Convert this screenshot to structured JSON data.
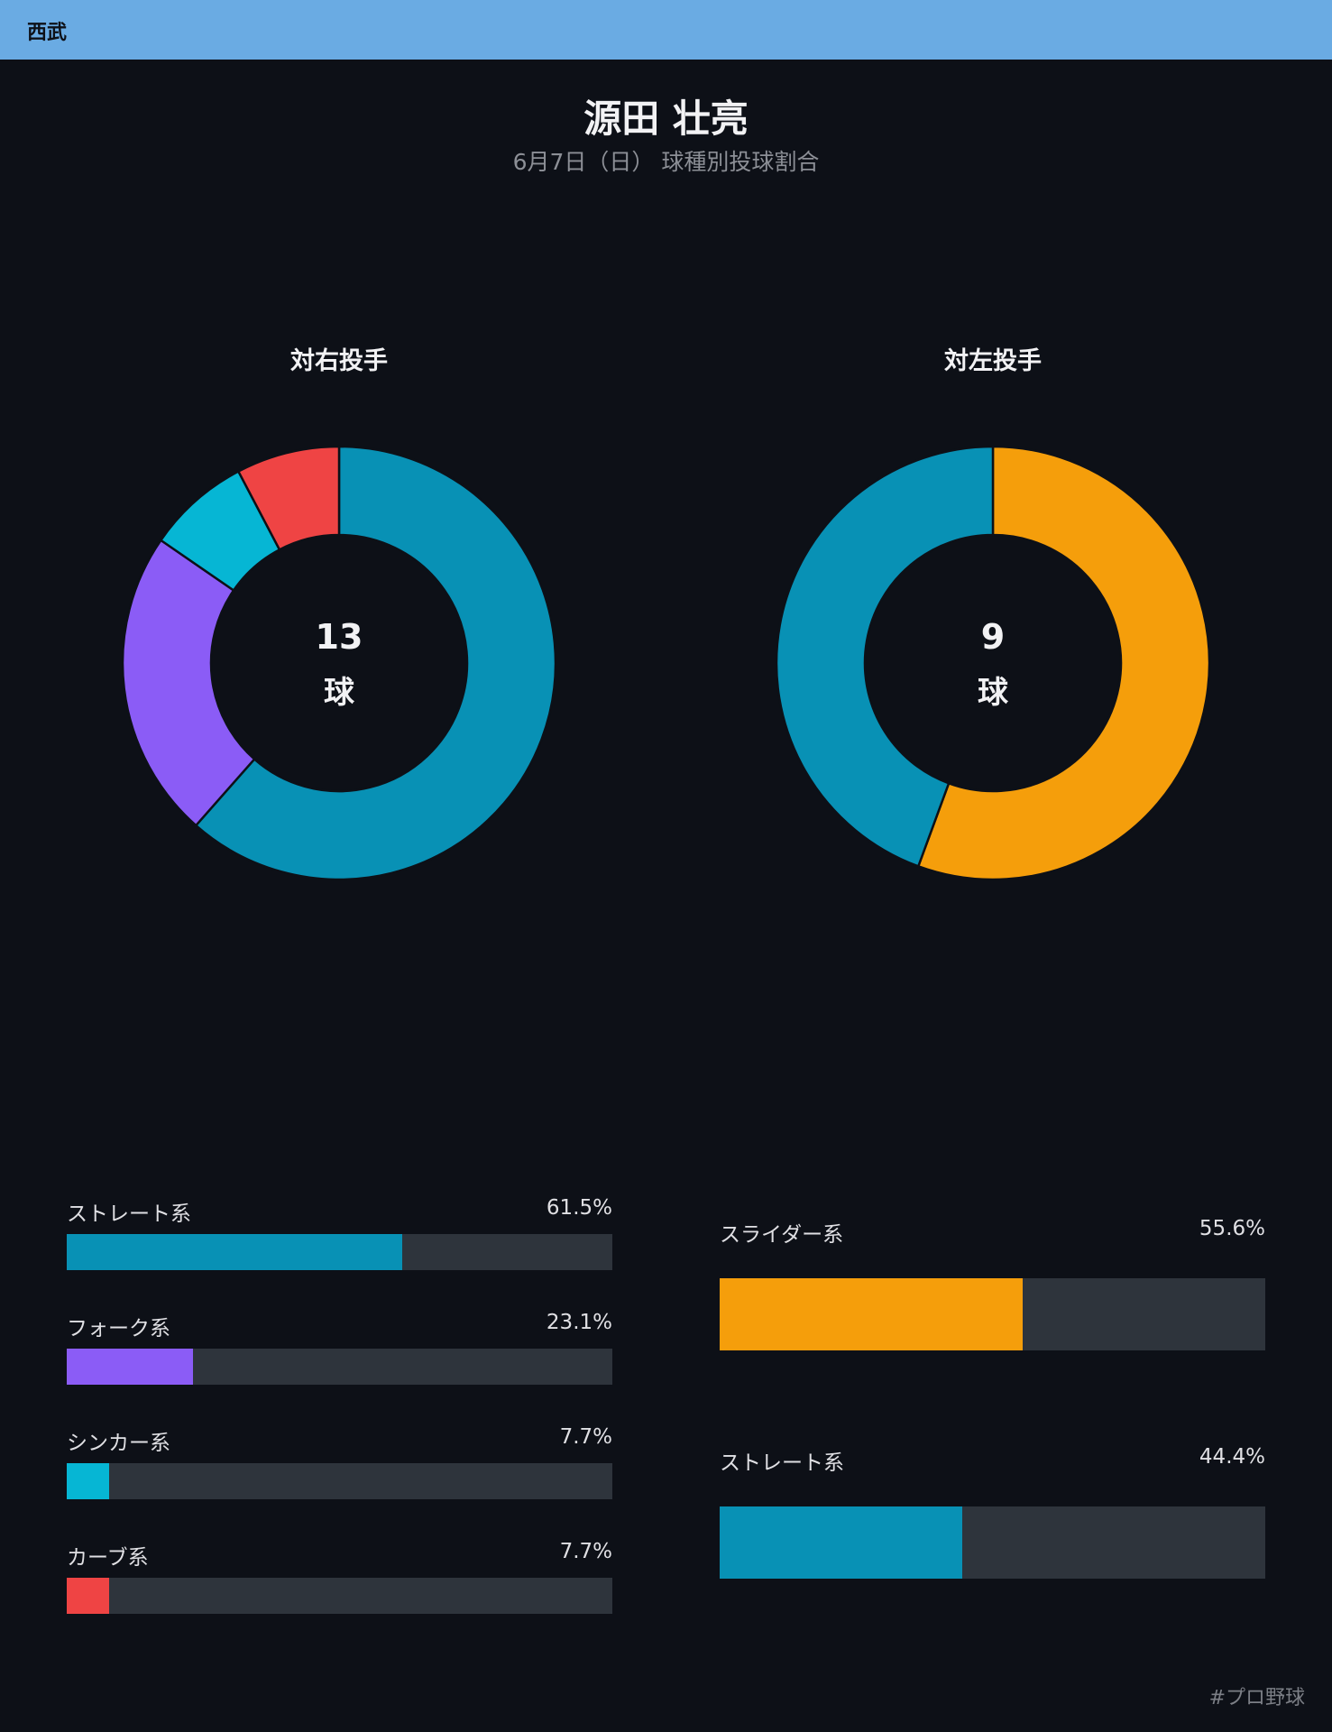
{
  "header": {
    "team": "西武"
  },
  "title": "源田 壮亮",
  "subtitle": "6月7日（日） 球種別投球割合",
  "hashtag": "#プロ野球",
  "colors": {
    "straight": "#0891b5",
    "fork": "#8b5cf6",
    "sinker": "#06b6d4",
    "curve": "#ef4444",
    "slider": "#f59e0b",
    "track": "#2e343c"
  },
  "chart_data": [
    {
      "type": "pie",
      "title": "対右投手",
      "center": {
        "value": "13",
        "unit": "球"
      },
      "slices": [
        {
          "name": "ストレート系",
          "value": 61.5,
          "label": "61.5%",
          "color": "#0891b5"
        },
        {
          "name": "フォーク系",
          "value": 23.1,
          "label": "23.1%",
          "color": "#8b5cf6"
        },
        {
          "name": "シンカー系",
          "value": 7.7,
          "label": "7.7%",
          "color": "#06b6d4"
        },
        {
          "name": "カーブ系",
          "value": 7.7,
          "label": "7.7%",
          "color": "#ef4444"
        }
      ]
    },
    {
      "type": "pie",
      "title": "対左投手",
      "center": {
        "value": "9",
        "unit": "球"
      },
      "slices": [
        {
          "name": "スライダー系",
          "value": 55.6,
          "label": "55.6%",
          "color": "#f59e0b"
        },
        {
          "name": "ストレート系",
          "value": 44.4,
          "label": "44.4%",
          "color": "#0891b5"
        }
      ]
    }
  ]
}
